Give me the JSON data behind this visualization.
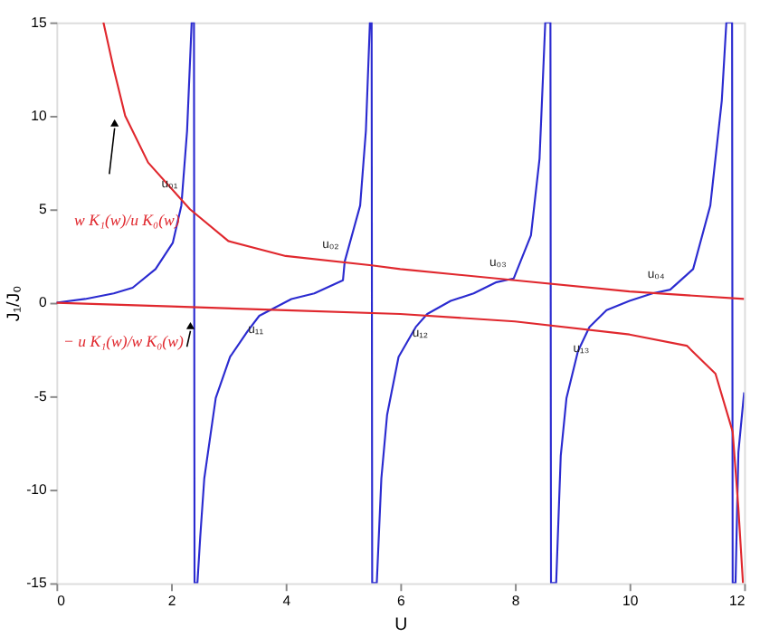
{
  "chart_data": {
    "type": "line",
    "xlabel": "U",
    "ylabel": "J₁/J₀",
    "xlim": [
      0,
      12
    ],
    "ylim": [
      -15,
      15
    ],
    "xticks": [
      0,
      2,
      4,
      6,
      8,
      10,
      12
    ],
    "yticks": [
      -15,
      -10,
      -5,
      0,
      5,
      10,
      15
    ],
    "grid": false,
    "legend": false,
    "series": [
      {
        "color": "#2b2bd0",
        "x": [
          0,
          0.5,
          1.0,
          1.33,
          1.73,
          2.03,
          2.18,
          2.28,
          2.36,
          2.4,
          2.41,
          2.46,
          2.51,
          2.58,
          2.78,
          3.03,
          3.34,
          3.54,
          3.79,
          4.1,
          4.5,
          5.0,
          5.03,
          5.3,
          5.4,
          5.47,
          5.5,
          5.51,
          5.59,
          5.67,
          5.77,
          5.97,
          6.27,
          6.47,
          6.88,
          7.28,
          7.68,
          7.98,
          8.28,
          8.43,
          8.53,
          8.62,
          8.63,
          8.72,
          8.8,
          8.9,
          9.1,
          9.3,
          9.6,
          10.0,
          10.4,
          10.71,
          11.11,
          11.41,
          11.61,
          11.69,
          11.79,
          11.8,
          11.85,
          11.9,
          12
        ],
        "values": [
          0,
          0.2,
          0.5,
          0.8,
          1.8,
          3.2,
          5.2,
          9.2,
          15,
          15,
          -15,
          -15,
          -12.5,
          -9.4,
          -5.1,
          -2.9,
          -1.5,
          -0.7,
          -0.3,
          0.2,
          0.5,
          1.2,
          2.2,
          5.2,
          9.2,
          15,
          15,
          -15,
          -15,
          -9.4,
          -6.0,
          -2.9,
          -1.3,
          -0.6,
          0.1,
          0.5,
          1.1,
          1.3,
          3.6,
          7.7,
          15,
          15,
          -15,
          -15,
          -8.2,
          -5.1,
          -2.6,
          -1.3,
          -0.4,
          0.1,
          0.5,
          0.7,
          1.8,
          5.2,
          10.8,
          15,
          15,
          -15,
          -15,
          -8,
          -4.8
        ]
      },
      {
        "name": "w K₁(w)/u K₀(w)",
        "color": "#e0282e",
        "x": [
          0.82,
          1.0,
          1.2,
          1.6,
          2.33,
          3.0,
          4.0,
          5.5,
          6.0,
          8.0,
          10.0,
          12.0
        ],
        "values": [
          15,
          12.5,
          10,
          7.5,
          5,
          3.3,
          2.5,
          2.0,
          1.8,
          1.2,
          0.6,
          0.2
        ]
      },
      {
        "name": "− u K₁(w)/w K₀(w)",
        "color": "#e0282e",
        "x": [
          0,
          2.0,
          4.0,
          6.0,
          8.0,
          10.0,
          11.0,
          11.5,
          11.8,
          11.9,
          11.98
        ],
        "values": [
          0,
          -0.2,
          -0.4,
          -0.6,
          -1.0,
          -1.7,
          -2.3,
          -3.8,
          -6.9,
          -11,
          -15
        ]
      }
    ],
    "annotations": [
      {
        "text": "u₀₁",
        "x": 2.22,
        "y": 5.4
      },
      {
        "text": "u₁₁",
        "x": 3.6,
        "y": -0.4
      },
      {
        "text": "u₀₂",
        "x": 5.03,
        "y": 2.2
      },
      {
        "text": "u₁₂",
        "x": 6.47,
        "y": -0.6
      },
      {
        "text": "u₀₃",
        "x": 7.95,
        "y": 1.2
      },
      {
        "text": "u₁₃",
        "x": 9.28,
        "y": -1.4
      },
      {
        "text": "u₀₄",
        "x": 10.71,
        "y": 0.6
      }
    ]
  }
}
